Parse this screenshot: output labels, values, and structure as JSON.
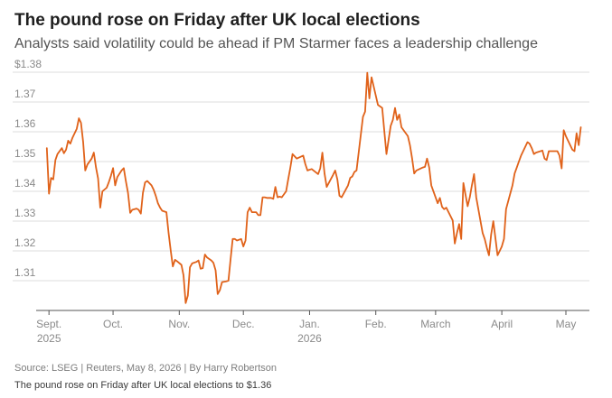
{
  "title": "The pound rose on Friday after UK local elections",
  "subtitle": "Analysts said volatility could be ahead if PM Starmer faces a leadership challenge",
  "source": "Source: LSEG | Reuters, May 8, 2026 | By Harry Robertson",
  "caption": "The pound rose on Friday after UK local elections to $1.36",
  "colors": {
    "line": "#e0621a",
    "grid": "#dcdcdc",
    "axis": "#555555",
    "text": "#8a8a8a"
  },
  "chart_data": {
    "type": "line",
    "ylim": [
      1.3,
      1.38
    ],
    "yticks": [
      1.31,
      1.32,
      1.33,
      1.34,
      1.35,
      1.36,
      1.37,
      1.38
    ],
    "ytick_labels": [
      "1.31",
      "1.32",
      "1.33",
      "1.34",
      "1.35",
      "1.36",
      "1.37",
      "$1.38"
    ],
    "grid": "horizontal",
    "xticks": [
      {
        "date": "2025-09-01",
        "label": "Sept.",
        "sub": "2025"
      },
      {
        "date": "2025-10-01",
        "label": "Oct.",
        "sub": ""
      },
      {
        "date": "2025-11-01",
        "label": "Nov.",
        "sub": ""
      },
      {
        "date": "2025-12-01",
        "label": "Dec.",
        "sub": ""
      },
      {
        "date": "2026-01-01",
        "label": "Jan.",
        "sub": "2026"
      },
      {
        "date": "2026-02-01",
        "label": "Feb.",
        "sub": ""
      },
      {
        "date": "2026-03-01",
        "label": "March",
        "sub": ""
      },
      {
        "date": "2026-04-01",
        "label": "April",
        "sub": ""
      },
      {
        "date": "2026-05-01",
        "label": "May",
        "sub": ""
      }
    ],
    "xlim": [
      "2025-08-26",
      "2026-05-12"
    ],
    "series": [
      {
        "points": [
          [
            "2025-08-31",
            1.3545
          ],
          [
            "2025-09-01",
            1.3392
          ],
          [
            "2025-09-02",
            1.3445
          ],
          [
            "2025-09-03",
            1.344
          ],
          [
            "2025-09-04",
            1.3505
          ],
          [
            "2025-09-05",
            1.3525
          ],
          [
            "2025-09-07",
            1.3545
          ],
          [
            "2025-09-08",
            1.3528
          ],
          [
            "2025-09-09",
            1.354
          ],
          [
            "2025-09-10",
            1.357
          ],
          [
            "2025-09-11",
            1.356
          ],
          [
            "2025-09-12",
            1.358
          ],
          [
            "2025-09-14",
            1.361
          ],
          [
            "2025-09-15",
            1.3645
          ],
          [
            "2025-09-16",
            1.363
          ],
          [
            "2025-09-17",
            1.3565
          ],
          [
            "2025-09-18",
            1.347
          ],
          [
            "2025-09-19",
            1.349
          ],
          [
            "2025-09-21",
            1.351
          ],
          [
            "2025-09-22",
            1.353
          ],
          [
            "2025-09-23",
            1.348
          ],
          [
            "2025-09-24",
            1.3443
          ],
          [
            "2025-09-25",
            1.3345
          ],
          [
            "2025-09-26",
            1.34
          ],
          [
            "2025-09-28",
            1.3412
          ],
          [
            "2025-09-29",
            1.343
          ],
          [
            "2025-09-30",
            1.3452
          ],
          [
            "2025-10-01",
            1.3478
          ],
          [
            "2025-10-02",
            1.342
          ],
          [
            "2025-10-03",
            1.3448
          ],
          [
            "2025-10-05",
            1.347
          ],
          [
            "2025-10-06",
            1.3478
          ],
          [
            "2025-10-07",
            1.3435
          ],
          [
            "2025-10-08",
            1.3395
          ],
          [
            "2025-10-09",
            1.3328
          ],
          [
            "2025-10-10",
            1.3338
          ],
          [
            "2025-10-12",
            1.3342
          ],
          [
            "2025-10-13",
            1.3338
          ],
          [
            "2025-10-14",
            1.3325
          ],
          [
            "2025-10-15",
            1.3395
          ],
          [
            "2025-10-16",
            1.343
          ],
          [
            "2025-10-17",
            1.3435
          ],
          [
            "2025-10-19",
            1.342
          ],
          [
            "2025-10-20",
            1.3405
          ],
          [
            "2025-10-21",
            1.3385
          ],
          [
            "2025-10-22",
            1.336
          ],
          [
            "2025-10-23",
            1.3345
          ],
          [
            "2025-10-24",
            1.3335
          ],
          [
            "2025-10-26",
            1.333
          ],
          [
            "2025-10-27",
            1.326
          ],
          [
            "2025-10-28",
            1.32
          ],
          [
            "2025-10-29",
            1.3148
          ],
          [
            "2025-10-30",
            1.317
          ],
          [
            "2025-10-31",
            1.3165
          ],
          [
            "2025-11-02",
            1.3153
          ],
          [
            "2025-11-03",
            1.3118
          ],
          [
            "2025-11-04",
            1.3025
          ],
          [
            "2025-11-05",
            1.305
          ],
          [
            "2025-11-06",
            1.3145
          ],
          [
            "2025-11-07",
            1.3158
          ],
          [
            "2025-11-09",
            1.3163
          ],
          [
            "2025-11-10",
            1.3168
          ],
          [
            "2025-11-11",
            1.314
          ],
          [
            "2025-11-12",
            1.3142
          ],
          [
            "2025-11-13",
            1.3188
          ],
          [
            "2025-11-14",
            1.3178
          ],
          [
            "2025-11-16",
            1.3168
          ],
          [
            "2025-11-17",
            1.316
          ],
          [
            "2025-11-18",
            1.3135
          ],
          [
            "2025-11-19",
            1.3055
          ],
          [
            "2025-11-20",
            1.3068
          ],
          [
            "2025-11-21",
            1.3095
          ],
          [
            "2025-11-23",
            1.3098
          ],
          [
            "2025-11-24",
            1.31
          ],
          [
            "2025-11-25",
            1.317
          ],
          [
            "2025-11-26",
            1.324
          ],
          [
            "2025-11-27",
            1.324
          ],
          [
            "2025-11-28",
            1.3235
          ],
          [
            "2025-11-30",
            1.324
          ],
          [
            "2025-12-01",
            1.3215
          ],
          [
            "2025-12-02",
            1.3235
          ],
          [
            "2025-12-03",
            1.333
          ],
          [
            "2025-12-04",
            1.3345
          ],
          [
            "2025-12-05",
            1.333
          ],
          [
            "2025-12-07",
            1.333
          ],
          [
            "2025-12-08",
            1.332
          ],
          [
            "2025-12-09",
            1.332
          ],
          [
            "2025-12-10",
            1.338
          ],
          [
            "2025-12-11",
            1.338
          ],
          [
            "2025-12-12",
            1.3378
          ],
          [
            "2025-12-14",
            1.3378
          ],
          [
            "2025-12-15",
            1.3375
          ],
          [
            "2025-12-16",
            1.3415
          ],
          [
            "2025-12-17",
            1.338
          ],
          [
            "2025-12-18",
            1.3382
          ],
          [
            "2025-12-19",
            1.338
          ],
          [
            "2025-12-21",
            1.34
          ],
          [
            "2025-12-22",
            1.344
          ],
          [
            "2025-12-23",
            1.348
          ],
          [
            "2025-12-24",
            1.3525
          ],
          [
            "2025-12-26",
            1.351
          ],
          [
            "2025-12-29",
            1.352
          ],
          [
            "2025-12-30",
            1.3492
          ],
          [
            "2025-12-31",
            1.347
          ],
          [
            "2026-01-02",
            1.3475
          ],
          [
            "2026-01-05",
            1.3458
          ],
          [
            "2026-01-06",
            1.3478
          ],
          [
            "2026-01-07",
            1.353
          ],
          [
            "2026-01-08",
            1.346
          ],
          [
            "2026-01-09",
            1.3415
          ],
          [
            "2026-01-12",
            1.3455
          ],
          [
            "2026-01-13",
            1.347
          ],
          [
            "2026-01-14",
            1.344
          ],
          [
            "2026-01-15",
            1.3385
          ],
          [
            "2026-01-16",
            1.338
          ],
          [
            "2026-01-19",
            1.342
          ],
          [
            "2026-01-20",
            1.3445
          ],
          [
            "2026-01-21",
            1.345
          ],
          [
            "2026-01-22",
            1.3465
          ],
          [
            "2026-01-23",
            1.347
          ],
          [
            "2026-01-26",
            1.365
          ],
          [
            "2026-01-27",
            1.3668
          ],
          [
            "2026-01-28",
            1.3798
          ],
          [
            "2026-01-29",
            1.3712
          ],
          [
            "2026-01-30",
            1.3783
          ],
          [
            "2026-02-02",
            1.369
          ],
          [
            "2026-02-03",
            1.3685
          ],
          [
            "2026-02-04",
            1.368
          ],
          [
            "2026-02-05",
            1.36
          ],
          [
            "2026-02-06",
            1.3525
          ],
          [
            "2026-02-08",
            1.362
          ],
          [
            "2026-02-09",
            1.364
          ],
          [
            "2026-02-10",
            1.368
          ],
          [
            "2026-02-11",
            1.364
          ],
          [
            "2026-02-12",
            1.3658
          ],
          [
            "2026-02-13",
            1.3615
          ],
          [
            "2026-02-16",
            1.3585
          ],
          [
            "2026-02-17",
            1.3555
          ],
          [
            "2026-02-18",
            1.351
          ],
          [
            "2026-02-19",
            1.346
          ],
          [
            "2026-02-20",
            1.347
          ],
          [
            "2026-02-23",
            1.348
          ],
          [
            "2026-02-24",
            1.3482
          ],
          [
            "2026-02-25",
            1.351
          ],
          [
            "2026-02-26",
            1.348
          ],
          [
            "2026-02-27",
            1.342
          ],
          [
            "2026-03-02",
            1.336
          ],
          [
            "2026-03-03",
            1.3378
          ],
          [
            "2026-03-04",
            1.3348
          ],
          [
            "2026-03-05",
            1.334
          ],
          [
            "2026-03-06",
            1.3345
          ],
          [
            "2026-03-09",
            1.3302
          ],
          [
            "2026-03-10",
            1.3225
          ],
          [
            "2026-03-11",
            1.326
          ],
          [
            "2026-03-12",
            1.329
          ],
          [
            "2026-03-13",
            1.324
          ],
          [
            "2026-03-14",
            1.3428
          ],
          [
            "2026-03-16",
            1.335
          ],
          [
            "2026-03-17",
            1.338
          ],
          [
            "2026-03-18",
            1.342
          ],
          [
            "2026-03-19",
            1.3458
          ],
          [
            "2026-03-20",
            1.338
          ],
          [
            "2026-03-23",
            1.326
          ],
          [
            "2026-03-24",
            1.324
          ],
          [
            "2026-03-25",
            1.321
          ],
          [
            "2026-03-26",
            1.3185
          ],
          [
            "2026-03-27",
            1.3255
          ],
          [
            "2026-03-28",
            1.33
          ],
          [
            "2026-03-30",
            1.3185
          ],
          [
            "2026-03-31",
            1.32
          ],
          [
            "2026-04-01",
            1.3215
          ],
          [
            "2026-04-02",
            1.324
          ],
          [
            "2026-04-03",
            1.334
          ],
          [
            "2026-04-06",
            1.342
          ],
          [
            "2026-04-07",
            1.346
          ],
          [
            "2026-04-08",
            1.348
          ],
          [
            "2026-04-09",
            1.35
          ],
          [
            "2026-04-10",
            1.352
          ],
          [
            "2026-04-13",
            1.3565
          ],
          [
            "2026-04-14",
            1.356
          ],
          [
            "2026-04-15",
            1.3545
          ],
          [
            "2026-04-16",
            1.3525
          ],
          [
            "2026-04-17",
            1.353
          ],
          [
            "2026-04-20",
            1.3537
          ],
          [
            "2026-04-21",
            1.351
          ],
          [
            "2026-04-22",
            1.3505
          ],
          [
            "2026-04-23",
            1.3535
          ],
          [
            "2026-04-24",
            1.3535
          ],
          [
            "2026-04-27",
            1.3535
          ],
          [
            "2026-04-28",
            1.352
          ],
          [
            "2026-04-29",
            1.3477
          ],
          [
            "2026-04-30",
            1.3605
          ],
          [
            "2026-05-01",
            1.3585
          ],
          [
            "2026-05-04",
            1.354
          ],
          [
            "2026-05-05",
            1.3535
          ],
          [
            "2026-05-06",
            1.3595
          ],
          [
            "2026-05-07",
            1.3555
          ],
          [
            "2026-05-08",
            1.3615
          ]
        ]
      }
    ]
  }
}
